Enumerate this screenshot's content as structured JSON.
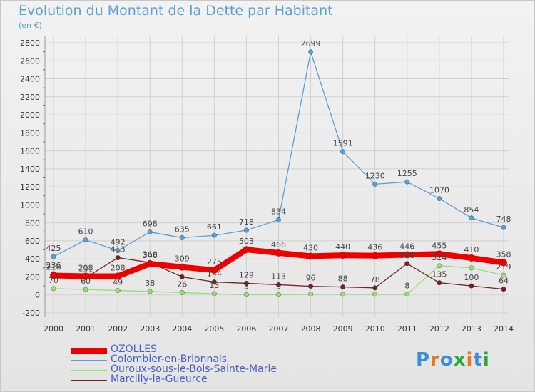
{
  "title": "Evolution du Montant de la Dette par Habitant",
  "unit": "(en €)",
  "logo": {
    "text": "Proxiti",
    "colors": [
      "#3a8fd8",
      "#e87820",
      "#3a8fd8",
      "#2aa83a",
      "#e87820",
      "#3a8fd8",
      "#2aa83a"
    ]
  },
  "chart_data": {
    "type": "line",
    "x": [
      "2000",
      "2001",
      "2002",
      "2003",
      "2004",
      "2005",
      "2006",
      "2007",
      "2008",
      "2009",
      "2010",
      "2011",
      "2012",
      "2013",
      "2014"
    ],
    "ylim": [
      -200,
      2800
    ],
    "yticks": [
      "-200",
      "0",
      "200",
      "400",
      "600",
      "800",
      "1000",
      "1200",
      "1400",
      "1600",
      "1800",
      "2000",
      "2200",
      "2400",
      "2600",
      "2800"
    ],
    "grid": true,
    "legend_position": "bottom-left",
    "series": [
      {
        "name": "OZOLLES",
        "color": "#ee0000",
        "values": [
          216,
          208,
          208,
          346,
          309,
          275,
          503,
          466,
          430,
          440,
          436,
          446,
          455,
          410,
          358
        ],
        "labels": [
          "216",
          "208",
          "208",
          "346",
          "309",
          "275",
          "503",
          "466",
          "430",
          "440",
          "436",
          "446",
          "455",
          "410",
          "358"
        ]
      },
      {
        "name": "Colombier-en-Brionnais",
        "color": "#5aa0d6",
        "values": [
          425,
          610,
          492,
          698,
          635,
          661,
          718,
          834,
          2699,
          1591,
          1230,
          1255,
          1070,
          854,
          748
        ],
        "labels": [
          "425",
          "610",
          "492",
          "698",
          "635",
          "661",
          "718",
          "834",
          "2699",
          "1591",
          "1230",
          "1255",
          "1070",
          "854",
          "748"
        ]
      },
      {
        "name": "Ouroux-sous-le-Bois-Sainte-Marie",
        "color": "#99dd77",
        "values": [
          70,
          60,
          49,
          38,
          26,
          13,
          3,
          3,
          9,
          8,
          8,
          8,
          324,
          300,
          219
        ],
        "labels": [
          "70",
          "60",
          "49",
          "38",
          "26",
          "13",
          "3",
          "3",
          "",
          "",
          "",
          "8",
          "324",
          "",
          "219"
        ]
      },
      {
        "name": "Marcilly-la-Gueurce",
        "color": "#772222",
        "values": [
          236,
          191,
          413,
          360,
          200,
          144,
          129,
          113,
          96,
          88,
          78,
          348,
          135,
          100,
          64
        ],
        "labels": [
          "236",
          "191",
          "413",
          "360",
          "",
          "144",
          "129",
          "113",
          "96",
          "88",
          "78",
          "348",
          "135",
          "100",
          "64"
        ]
      }
    ]
  }
}
